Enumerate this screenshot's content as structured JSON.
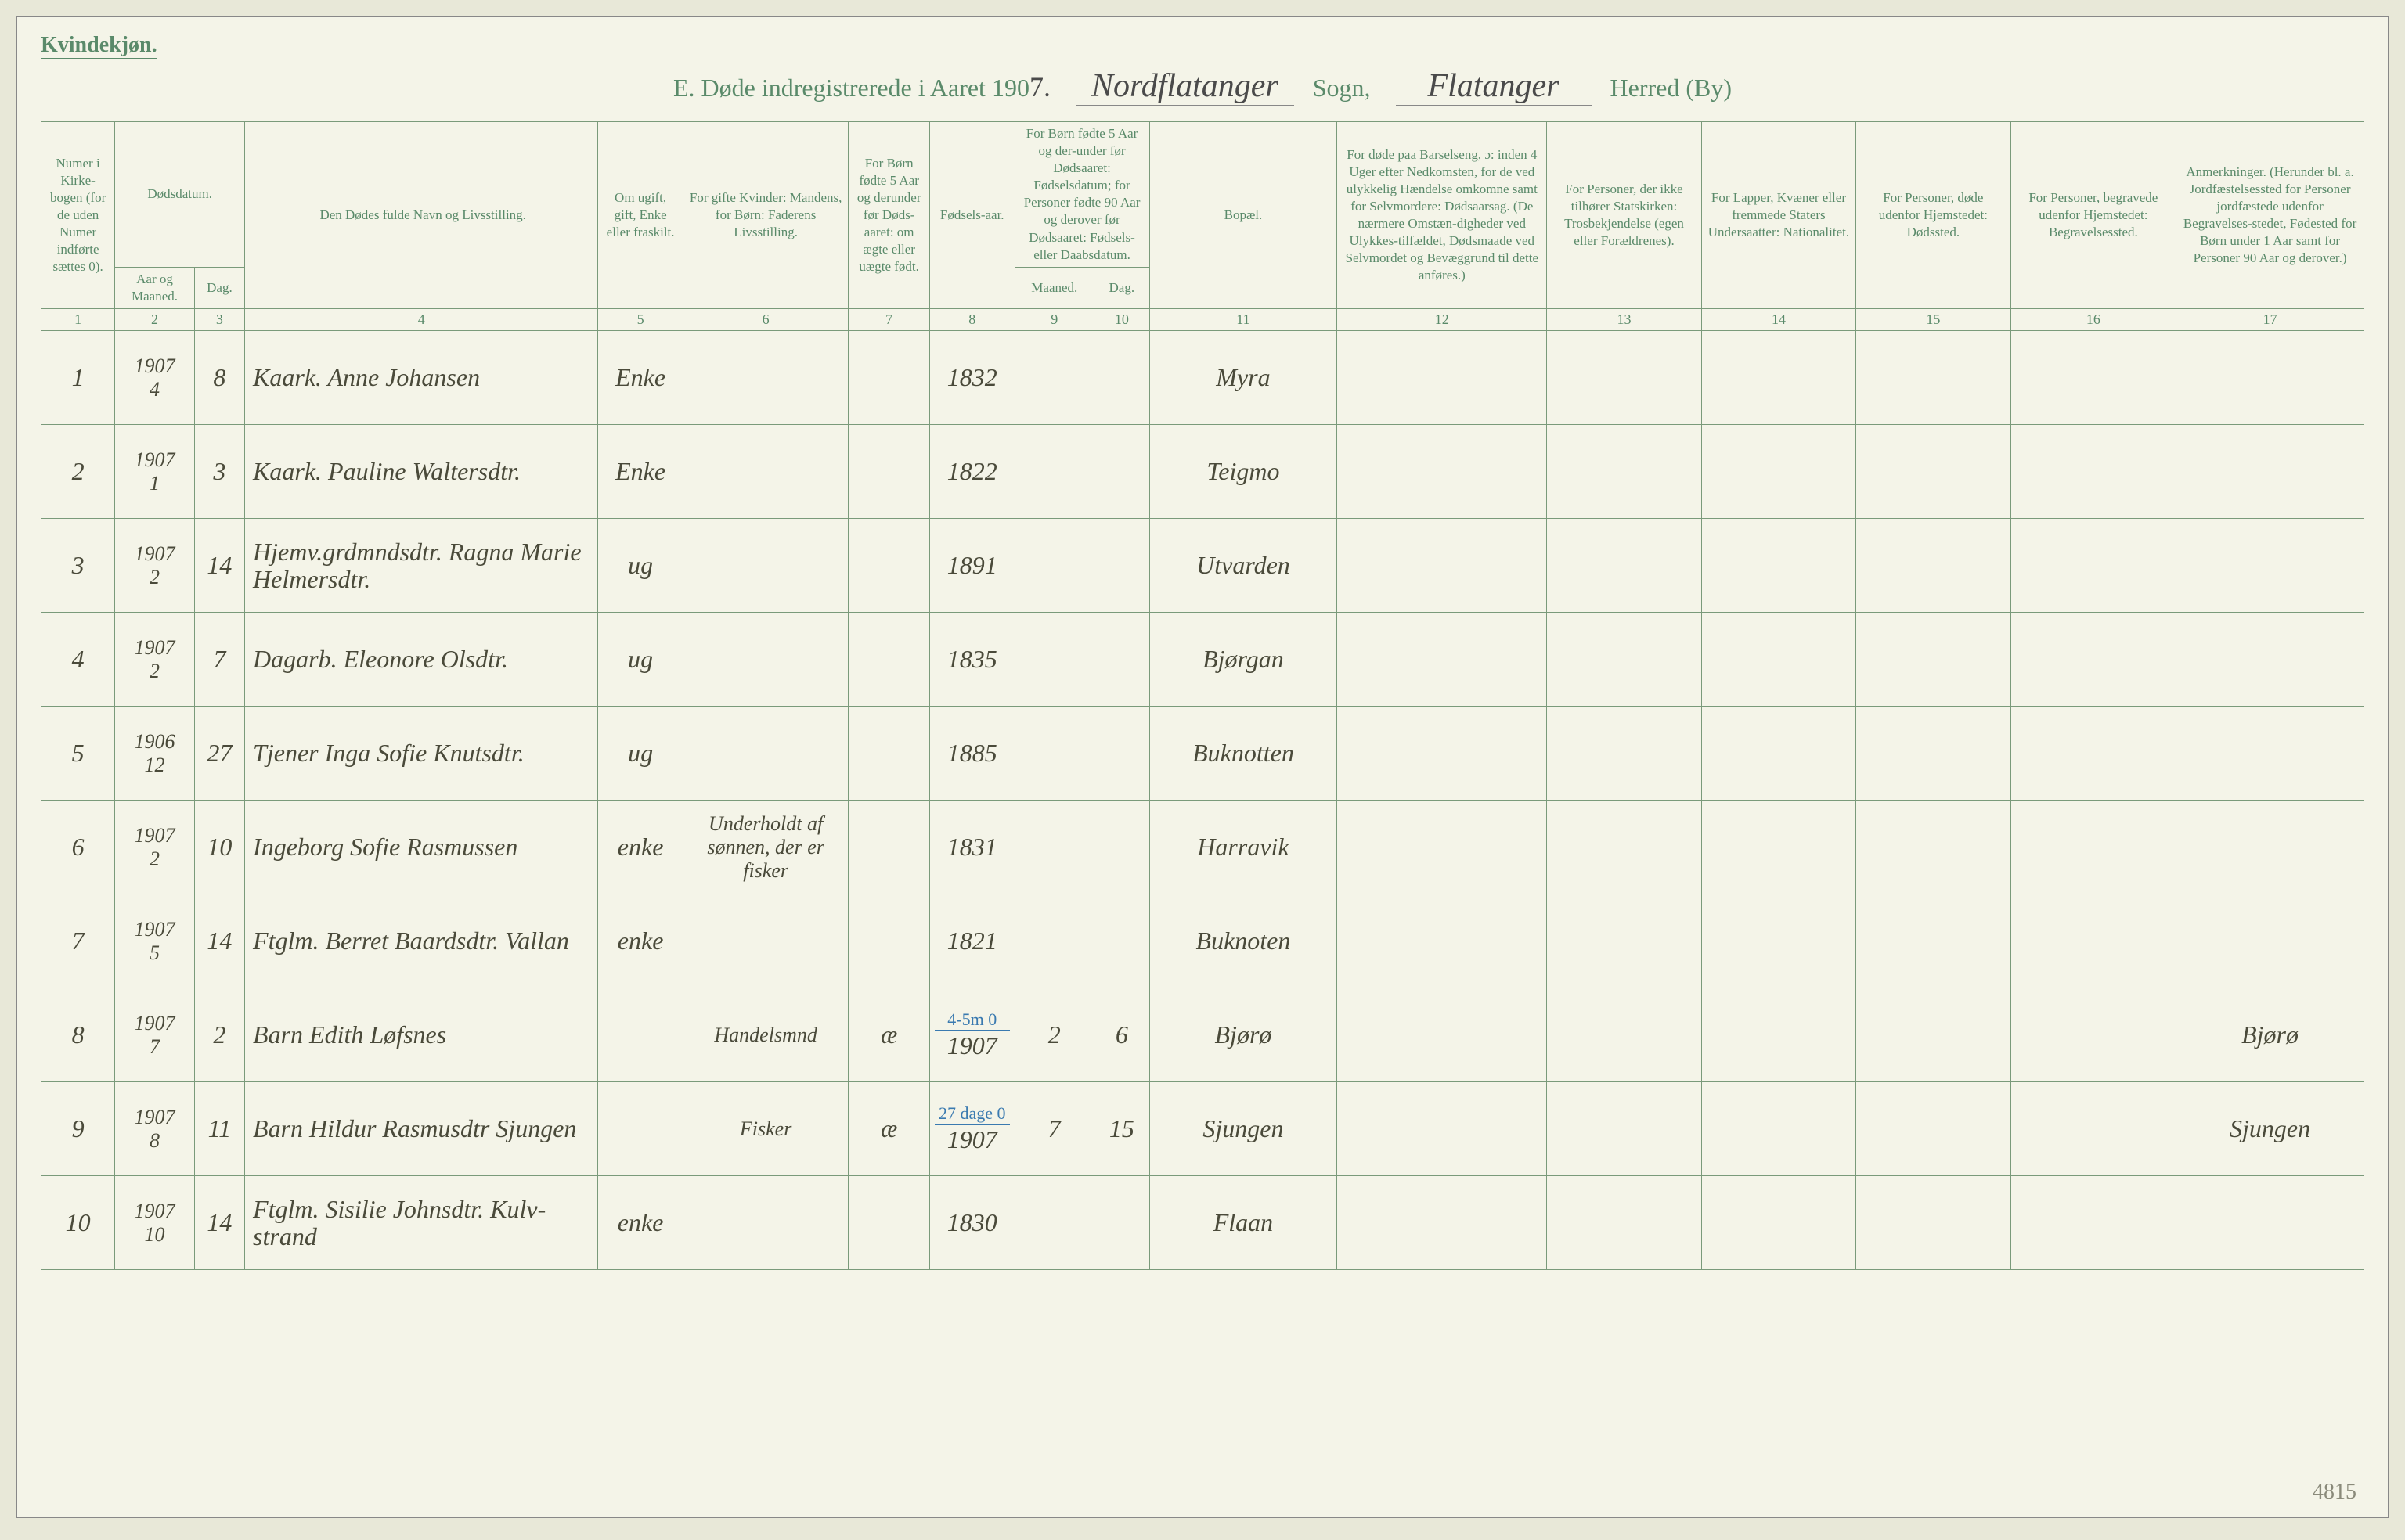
{
  "header": {
    "gender_label": "Kvindekjøn.",
    "title_prefix": "E.  Døde indregistrerede i Aaret 190",
    "year_suffix": "7.",
    "sogn_label": "Sogn,",
    "herred_label": "Herred (By)",
    "sogn_value": "Nordflatanger",
    "herred_value": "Flatanger"
  },
  "columns": {
    "c1": "Numer i Kirke-bogen (for de uden Numer indførte sættes 0).",
    "c2": "Dødsdatum.",
    "c2a": "Aar og Maaned.",
    "c2b": "Dag.",
    "c4": "Den Dødes fulde Navn og Livsstilling.",
    "c5": "Om ugift, gift, Enke eller fraskilt.",
    "c6": "For gifte Kvinder: Mandens, for Børn: Faderens Livsstilling.",
    "c7": "For Børn fødte 5 Aar og derunder før Døds-aaret: om ægte eller uægte født.",
    "c8": "Fødsels-aar.",
    "c9_10": "For Børn fødte 5 Aar og der-under før Dødsaaret: Fødselsdatum; for Personer fødte 90 Aar og derover før Dødsaaret: Fødsels- eller Daabsdatum.",
    "c9": "Maaned.",
    "c10": "Dag.",
    "c11": "Bopæl.",
    "c12": "For døde paa Barselseng, ɔ: inden 4 Uger efter Nedkomsten, for de ved ulykkelig Hændelse omkomne samt for Selvmordere: Dødsaarsag. (De nærmere Omstæn-digheder ved Ulykkes-tilfældet, Dødsmaade ved Selvmordet og Bevæggrund til dette anføres.)",
    "c13": "For Personer, der ikke tilhører Statskirken: Trosbekjendelse (egen eller Forældrenes).",
    "c14": "For Lapper, Kvæner eller fremmede Staters Undersaatter: Nationalitet.",
    "c15": "For Personer, døde udenfor Hjemstedet: Dødssted.",
    "c16": "For Personer, begravede udenfor Hjemstedet: Begravelsessted.",
    "c17": "Anmerkninger. (Herunder bl. a. Jordfæstelsessted for Personer jordfæstede udenfor Begravelses-stedet, Fødested for Børn under 1 Aar samt for Personer 90 Aar og derover.)"
  },
  "col_numbers": [
    "1",
    "2",
    "3",
    "4",
    "5",
    "6",
    "7",
    "8",
    "9",
    "10",
    "11",
    "12",
    "13",
    "14",
    "15",
    "16",
    "17"
  ],
  "rows": [
    {
      "num": "1",
      "year": "1907",
      "month": "4",
      "day": "8",
      "name": "Kaark. Anne Johansen",
      "status": "Enke",
      "father": "",
      "legit": "",
      "birth_year": "1832",
      "b_month": "",
      "b_day": "",
      "place": "Myra",
      "c12": "",
      "c13": "",
      "c14": "",
      "c15": "",
      "c16": "",
      "c17": ""
    },
    {
      "num": "2",
      "year": "1907",
      "month": "1",
      "day": "3",
      "name": "Kaark. Pauline Waltersdtr.",
      "status": "Enke",
      "father": "",
      "legit": "",
      "birth_year": "1822",
      "b_month": "",
      "b_day": "",
      "place": "Teigmo",
      "c12": "",
      "c13": "",
      "c14": "",
      "c15": "",
      "c16": "",
      "c17": ""
    },
    {
      "num": "3",
      "year": "1907",
      "month": "2",
      "day": "14",
      "name": "Hjemv.grdmndsdtr. Ragna Marie Helmersdtr.",
      "status": "ug",
      "father": "",
      "legit": "",
      "birth_year": "1891",
      "b_month": "",
      "b_day": "",
      "place": "Utvarden",
      "c12": "",
      "c13": "",
      "c14": "",
      "c15": "",
      "c16": "",
      "c17": ""
    },
    {
      "num": "4",
      "year": "1907",
      "month": "2",
      "day": "7",
      "name": "Dagarb. Eleonore Olsdtr.",
      "status": "ug",
      "father": "",
      "legit": "",
      "birth_year": "1835",
      "b_month": "",
      "b_day": "",
      "place": "Bjørgan",
      "c12": "",
      "c13": "",
      "c14": "",
      "c15": "",
      "c16": "",
      "c17": ""
    },
    {
      "num": "5",
      "year": "1906",
      "month": "12",
      "day": "27",
      "name": "Tjener Inga Sofie Knutsdtr.",
      "status": "ug",
      "father": "",
      "legit": "",
      "birth_year": "1885",
      "b_month": "",
      "b_day": "",
      "place": "Buknotten",
      "c12": "",
      "c13": "",
      "c14": "",
      "c15": "",
      "c16": "",
      "c17": ""
    },
    {
      "num": "6",
      "year": "1907",
      "month": "2",
      "day": "10",
      "name": "Ingeborg Sofie Rasmussen",
      "status": "enke",
      "father": "Underholdt af sønnen, der er fisker",
      "legit": "",
      "birth_year": "1831",
      "b_month": "",
      "b_day": "",
      "place": "Harravik",
      "c12": "",
      "c13": "",
      "c14": "",
      "c15": "",
      "c16": "",
      "c17": ""
    },
    {
      "num": "7",
      "year": "1907",
      "month": "5",
      "day": "14",
      "name": "Ftglm. Berret Baardsdtr. Vallan",
      "status": "enke",
      "father": "",
      "legit": "",
      "birth_year": "1821",
      "b_month": "",
      "b_day": "",
      "place": "Buknoten",
      "c12": "",
      "c13": "",
      "c14": "",
      "c15": "",
      "c16": "",
      "c17": ""
    },
    {
      "num": "8",
      "year": "1907",
      "month": "7",
      "day": "2",
      "name": "Barn Edith Løfsnes",
      "status": "",
      "father": "Handelsmnd",
      "legit": "æ",
      "birth_year": "1907",
      "b_month": "2",
      "b_day": "6",
      "blue_note": "4-5m 0",
      "place": "Bjørø",
      "c12": "",
      "c13": "",
      "c14": "",
      "c15": "",
      "c16": "",
      "c17": "Bjørø"
    },
    {
      "num": "9",
      "year": "1907",
      "month": "8",
      "day": "11",
      "name": "Barn Hildur Rasmusdtr Sjungen",
      "status": "",
      "father": "Fisker",
      "legit": "æ",
      "birth_year": "1907",
      "b_month": "7",
      "b_day": "15",
      "blue_note": "27 dage 0",
      "place": "Sjungen",
      "c12": "",
      "c13": "",
      "c14": "",
      "c15": "",
      "c16": "",
      "c17": "Sjungen"
    },
    {
      "num": "10",
      "year": "1907",
      "month": "10",
      "day": "14",
      "name": "Ftglm. Sisilie Johnsdtr. Kulv-strand",
      "status": "enke",
      "father": "",
      "legit": "",
      "birth_year": "1830",
      "b_month": "",
      "b_day": "",
      "place": "Flaan",
      "c12": "",
      "c13": "",
      "c14": "",
      "c15": "",
      "c16": "",
      "c17": ""
    }
  ],
  "corner_note": "4815"
}
